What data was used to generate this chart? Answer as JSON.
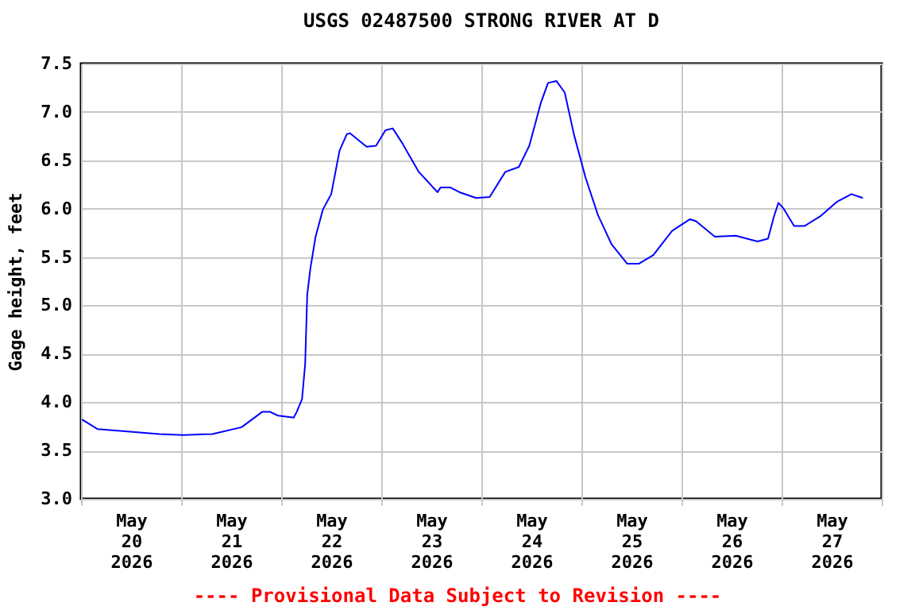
{
  "chart_data": {
    "type": "line",
    "title": "USGS 02487500 STRONG RIVER AT D",
    "ylabel": "Gage height, feet",
    "annotations": [
      "---- Provisional Data Subject to Revision ----"
    ],
    "grid": true,
    "xlim": [
      "2026-05-20T00:00",
      "2026-05-28T00:00"
    ],
    "xticks": [
      {
        "value": "2026-05-20T00:00",
        "label": null
      },
      {
        "value": "2026-05-20T12:00",
        "label": "May 20 2026"
      },
      {
        "value": "2026-05-21T00:00",
        "label": null
      },
      {
        "value": "2026-05-21T12:00",
        "label": "May 21 2026"
      },
      {
        "value": "2026-05-22T00:00",
        "label": null
      },
      {
        "value": "2026-05-22T12:00",
        "label": "May 22 2026"
      },
      {
        "value": "2026-05-23T00:00",
        "label": null
      },
      {
        "value": "2026-05-23T12:00",
        "label": "May 23 2026"
      },
      {
        "value": "2026-05-24T00:00",
        "label": null
      },
      {
        "value": "2026-05-24T12:00",
        "label": "May 24 2026"
      },
      {
        "value": "2026-05-25T00:00",
        "label": null
      },
      {
        "value": "2026-05-25T12:00",
        "label": "May 25 2026"
      },
      {
        "value": "2026-05-26T00:00",
        "label": null
      },
      {
        "value": "2026-05-26T12:00",
        "label": "May 26 2026"
      },
      {
        "value": "2026-05-27T00:00",
        "label": null
      },
      {
        "value": "2026-05-27T12:00",
        "label": "May 27 2026"
      },
      {
        "value": "2026-05-28T00:00",
        "label": null
      }
    ],
    "ylim": [
      3.0,
      7.5
    ],
    "yticks": [
      {
        "value": 3,
        "label": "3.0"
      },
      {
        "value": 3.5,
        "label": "3.5"
      },
      {
        "value": 4,
        "label": "4.0"
      },
      {
        "value": 4.5,
        "label": "4.5"
      },
      {
        "value": 5,
        "label": "5.0"
      },
      {
        "value": 5.5,
        "label": "5.5"
      },
      {
        "value": 6,
        "label": "6.0"
      },
      {
        "value": 6.5,
        "label": "6.5"
      },
      {
        "value": 7,
        "label": "7.0"
      },
      {
        "value": 7.5,
        "label": "7.5"
      }
    ],
    "series": [
      {
        "color": "#0000ff",
        "x": [
          "2026-05-20T00:15",
          "2026-05-20T04:00",
          "2026-05-20T10:00",
          "2026-05-20T18:45",
          "2026-05-21T00:30",
          "2026-05-21T07:30",
          "2026-05-21T14:30",
          "2026-05-21T19:30",
          "2026-05-21T21:15",
          "2026-05-21T23:15",
          "2026-05-22T03:00",
          "2026-05-22T03:45",
          "2026-05-22T05:00",
          "2026-05-22T05:45",
          "2026-05-22T06:15",
          "2026-05-22T07:00",
          "2026-05-22T08:15",
          "2026-05-22T10:00",
          "2026-05-22T12:00",
          "2026-05-22T14:00",
          "2026-05-22T15:45",
          "2026-05-22T16:30",
          "2026-05-22T20:30",
          "2026-05-22T22:45",
          "2026-05-23T01:00",
          "2026-05-23T02:45",
          "2026-05-23T05:00",
          "2026-05-23T09:00",
          "2026-05-23T13:30",
          "2026-05-23T14:15",
          "2026-05-23T16:30",
          "2026-05-23T18:45",
          "2026-05-23T22:45",
          "2026-05-24T02:00",
          "2026-05-24T05:45",
          "2026-05-24T09:00",
          "2026-05-24T11:30",
          "2026-05-24T14:15",
          "2026-05-24T16:00",
          "2026-05-24T18:00",
          "2026-05-24T20:00",
          "2026-05-24T22:15",
          "2026-05-25T01:00",
          "2026-05-25T04:00",
          "2026-05-25T07:15",
          "2026-05-25T11:00",
          "2026-05-25T13:45",
          "2026-05-25T17:15",
          "2026-05-25T21:45",
          "2026-05-26T02:00",
          "2026-05-26T03:30",
          "2026-05-26T08:00",
          "2026-05-26T13:00",
          "2026-05-26T18:15",
          "2026-05-26T20:45",
          "2026-05-26T22:15",
          "2026-05-26T23:15",
          "2026-05-27T00:30",
          "2026-05-27T03:00",
          "2026-05-27T05:30",
          "2026-05-27T09:15",
          "2026-05-27T13:15",
          "2026-05-27T16:45",
          "2026-05-27T19:30"
        ],
        "values": [
          3.82,
          3.72,
          3.7,
          3.67,
          3.66,
          3.67,
          3.74,
          3.9,
          3.9,
          3.86,
          3.84,
          3.9,
          4.03,
          4.39,
          5.11,
          5.38,
          5.71,
          5.99,
          6.15,
          6.6,
          6.77,
          6.78,
          6.64,
          6.65,
          6.81,
          6.83,
          6.68,
          6.38,
          6.17,
          6.22,
          6.22,
          6.17,
          6.11,
          6.12,
          6.38,
          6.43,
          6.65,
          7.09,
          7.3,
          7.32,
          7.2,
          6.76,
          6.32,
          5.93,
          5.63,
          5.43,
          5.43,
          5.52,
          5.77,
          5.89,
          5.87,
          5.71,
          5.72,
          5.66,
          5.69,
          5.93,
          6.06,
          6.0,
          5.82,
          5.82,
          5.92,
          6.07,
          6.15,
          6.11
        ]
      }
    ]
  }
}
